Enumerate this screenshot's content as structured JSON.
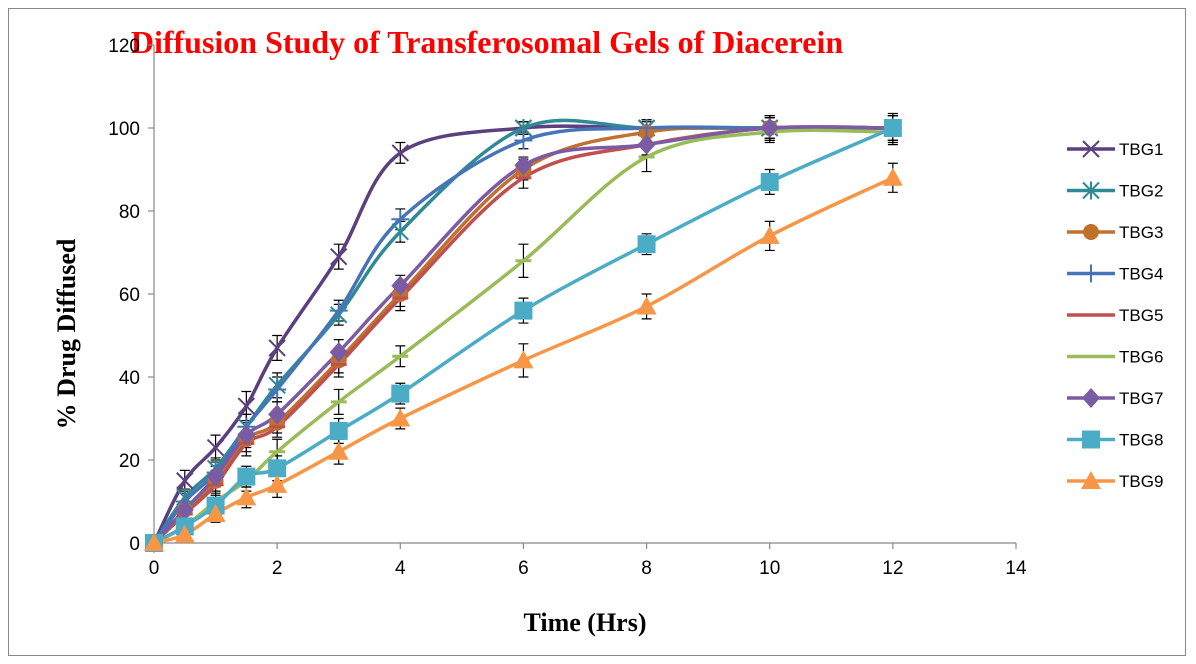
{
  "chart_data": {
    "type": "line",
    "title": "Diffusion Study of Transferosomal Gels of Diacerein",
    "xlabel": "Time (Hrs)",
    "ylabel": "% Drug Diffused",
    "xlim": [
      0,
      14
    ],
    "ylim": [
      0,
      120
    ],
    "xticks": [
      0,
      2,
      4,
      6,
      8,
      10,
      12,
      14
    ],
    "yticks": [
      0,
      20,
      40,
      60,
      80,
      100,
      120
    ],
    "grid": false,
    "legend_position": "right",
    "smooth": true,
    "error_bars": true,
    "x": [
      0,
      0.5,
      1,
      1.5,
      2,
      3,
      4,
      6,
      8,
      10,
      12
    ],
    "series": [
      {
        "name": "TBG1",
        "color": "#5b3f7f",
        "marker": "x",
        "values": [
          0,
          15,
          23,
          33,
          47,
          69,
          94,
          100,
          100,
          100,
          100
        ],
        "errors": [
          0,
          2.5,
          3,
          3.5,
          3,
          3,
          2.5,
          1.5,
          2,
          2.5,
          3
        ]
      },
      {
        "name": "TBG2",
        "color": "#2e8a94",
        "marker": "asterisk",
        "values": [
          0,
          11,
          18,
          28,
          38,
          55,
          75,
          100,
          100,
          100,
          100
        ],
        "errors": [
          0,
          2,
          2.5,
          3,
          3,
          2.5,
          2.5,
          1.5,
          2,
          2.5,
          3
        ]
      },
      {
        "name": "TBG3",
        "color": "#c0712d",
        "marker": "circle",
        "values": [
          0,
          8,
          15,
          25,
          29,
          44,
          60,
          90,
          99,
          100,
          100
        ],
        "errors": [
          0,
          2,
          2.5,
          3,
          2.5,
          3,
          3,
          2.5,
          2.5,
          3,
          3
        ]
      },
      {
        "name": "TBG4",
        "color": "#4774b8",
        "marker": "plus",
        "values": [
          0,
          10,
          17,
          28,
          37,
          56,
          78,
          97,
          100,
          100,
          100
        ],
        "errors": [
          0,
          2,
          2.5,
          3,
          3,
          2.5,
          2.5,
          2,
          2,
          2.5,
          3
        ]
      },
      {
        "name": "TBG5",
        "color": "#c0504d",
        "marker": "dash",
        "values": [
          0,
          7,
          14,
          24,
          28,
          43,
          59,
          88,
          96,
          100,
          100
        ],
        "errors": [
          0,
          2,
          2.5,
          3,
          2.5,
          3,
          3,
          2.5,
          2.5,
          3,
          3
        ]
      },
      {
        "name": "TBG6",
        "color": "#9bbb59",
        "marker": "dash",
        "values": [
          0,
          4,
          10,
          15,
          22,
          34,
          45,
          68,
          93,
          99,
          99
        ],
        "errors": [
          0,
          1.5,
          2,
          2.5,
          3,
          3,
          2.5,
          4,
          3.5,
          2.5,
          3
        ]
      },
      {
        "name": "TBG7",
        "color": "#7b5ba4",
        "marker": "diamond",
        "values": [
          0,
          8,
          16,
          26,
          31,
          46,
          62,
          91,
          96,
          100,
          100
        ],
        "errors": [
          0,
          2,
          2.5,
          3,
          3,
          3,
          2.5,
          2,
          2.5,
          3,
          3
        ]
      },
      {
        "name": "TBG8",
        "color": "#4bacc6",
        "marker": "square",
        "values": [
          0,
          4,
          9,
          16,
          18,
          27,
          36,
          56,
          72,
          87,
          100
        ],
        "errors": [
          0,
          1.5,
          2,
          2.5,
          3,
          3,
          2.5,
          3,
          2.5,
          3,
          3.5
        ]
      },
      {
        "name": "TBG9",
        "color": "#f79646",
        "marker": "triangle",
        "values": [
          0,
          2,
          7,
          11,
          14,
          22,
          30,
          44,
          57,
          74,
          88
        ],
        "errors": [
          0,
          1.5,
          2,
          2.5,
          3,
          3,
          2.5,
          4,
          3,
          3.5,
          3.5
        ]
      }
    ]
  }
}
